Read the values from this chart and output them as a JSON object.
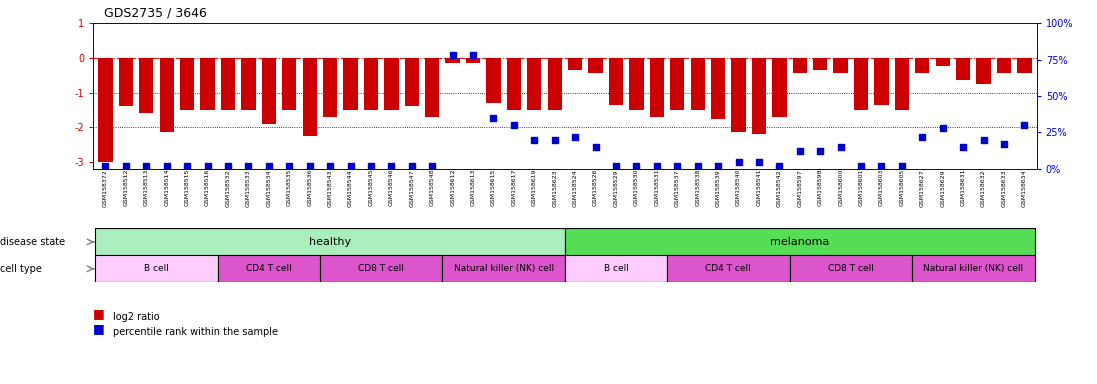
{
  "title": "GDS2735 / 3646",
  "samples": [
    "GSM158372",
    "GSM158512",
    "GSM158513",
    "GSM158514",
    "GSM158515",
    "GSM158516",
    "GSM158532",
    "GSM158533",
    "GSM158534",
    "GSM158535",
    "GSM158536",
    "GSM158543",
    "GSM158544",
    "GSM158545",
    "GSM158546",
    "GSM158547",
    "GSM158548",
    "GSM158612",
    "GSM158613",
    "GSM158615",
    "GSM158617",
    "GSM158619",
    "GSM158623",
    "GSM158524",
    "GSM158526",
    "GSM158529",
    "GSM158530",
    "GSM158531",
    "GSM158537",
    "GSM158538",
    "GSM158539",
    "GSM158540",
    "GSM158541",
    "GSM158542",
    "GSM158597",
    "GSM158598",
    "GSM158600",
    "GSM158601",
    "GSM158603",
    "GSM158605",
    "GSM158627",
    "GSM158629",
    "GSM158631",
    "GSM158632",
    "GSM158633",
    "GSM158634"
  ],
  "log2_ratio": [
    -3.0,
    -1.4,
    -1.6,
    -2.15,
    -1.5,
    -1.5,
    -1.5,
    -1.5,
    -1.9,
    -1.5,
    -2.25,
    -1.7,
    -1.5,
    -1.5,
    -1.5,
    -1.4,
    -1.7,
    -0.15,
    -0.15,
    -1.3,
    -1.5,
    -1.5,
    -1.5,
    -0.35,
    -0.45,
    -1.35,
    -1.5,
    -1.7,
    -1.5,
    -1.5,
    -1.75,
    -2.15,
    -2.2,
    -1.7,
    -0.45,
    -0.35,
    -0.45,
    -1.5,
    -1.35,
    -1.5,
    -0.45,
    -0.25,
    -0.65,
    -0.75,
    -0.45,
    -0.45
  ],
  "percentile": [
    2,
    2,
    2,
    2,
    2,
    2,
    2,
    2,
    2,
    2,
    2,
    2,
    2,
    2,
    2,
    2,
    2,
    78,
    78,
    35,
    30,
    20,
    20,
    22,
    15,
    2,
    2,
    2,
    2,
    2,
    2,
    5,
    5,
    2,
    12,
    12,
    15,
    2,
    2,
    2,
    22,
    28,
    15,
    20,
    17,
    30
  ],
  "disease_state": {
    "healthy": [
      0,
      23
    ],
    "melanoma": [
      23,
      46
    ]
  },
  "cell_types": [
    {
      "label": "B cell",
      "start": 0,
      "end": 6,
      "group": "healthy"
    },
    {
      "label": "CD4 T cell",
      "start": 6,
      "end": 11,
      "group": "healthy"
    },
    {
      "label": "CD8 T cell",
      "start": 11,
      "end": 17,
      "group": "healthy"
    },
    {
      "label": "Natural killer (NK) cell",
      "start": 17,
      "end": 23,
      "group": "healthy"
    },
    {
      "label": "B cell",
      "start": 23,
      "end": 28,
      "group": "melanoma"
    },
    {
      "label": "CD4 T cell",
      "start": 28,
      "end": 34,
      "group": "melanoma"
    },
    {
      "label": "CD8 T cell",
      "start": 34,
      "end": 40,
      "group": "melanoma"
    },
    {
      "label": "Natural killer (NK) cell",
      "start": 40,
      "end": 46,
      "group": "melanoma"
    }
  ],
  "cell_colors": [
    "#ffccff",
    "#dd55cc",
    "#dd55cc",
    "#dd55cc",
    "#ffccff",
    "#dd55cc",
    "#dd55cc",
    "#dd55cc"
  ],
  "bar_color": "#cc0000",
  "dot_color": "#0000cc",
  "healthy_color": "#aaeebb",
  "melanoma_color": "#55dd55",
  "ylim": [
    -3.2,
    1.0
  ],
  "y2lim": [
    0,
    100
  ],
  "bg_color": "#f0f0f0"
}
